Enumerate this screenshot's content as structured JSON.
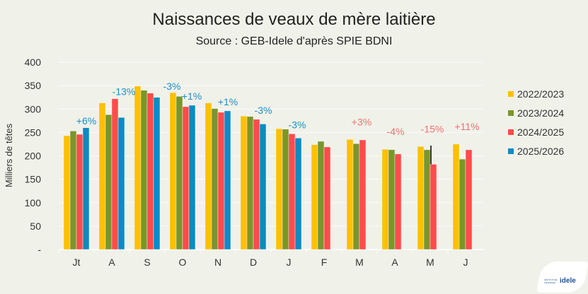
{
  "chart_data": {
    "type": "bar",
    "title": "Naissances de veaux de mère laitière",
    "subtitle": "Source : GEB-Idele d'après SPIE BDNI",
    "xlabel": "",
    "ylabel": "Milliers de têtes",
    "ylim": [
      0,
      400
    ],
    "yticks": [
      "-",
      "50",
      "100",
      "150",
      "200",
      "250",
      "300",
      "350",
      "400"
    ],
    "grid": true,
    "legend_position": "right",
    "categories": [
      "Jt",
      "A",
      "S",
      "O",
      "N",
      "D",
      "J",
      "F",
      "M",
      "A",
      "M",
      "J"
    ],
    "series": [
      {
        "name": "2022/2023",
        "color": "#FFC000",
        "values": [
          243,
          313,
          349,
          335,
          313,
          285,
          258,
          224,
          235,
          214,
          220,
          225
        ]
      },
      {
        "name": "2023/2024",
        "color": "#7A962A",
        "values": [
          253,
          288,
          340,
          327,
          301,
          284,
          257,
          231,
          226,
          213,
          213,
          193
        ]
      },
      {
        "name": "2024/2025",
        "color": "#FF4B4B",
        "values": [
          246,
          322,
          334,
          305,
          293,
          278,
          247,
          219,
          234,
          204,
          182,
          213
        ]
      },
      {
        "name": "2025/2026",
        "color": "#0A8CC4",
        "values": [
          260,
          282,
          325,
          308,
          296,
          268,
          238,
          null,
          null,
          null,
          null,
          null
        ]
      }
    ],
    "annotations": [
      "+6%",
      "-13%",
      "-3%",
      "+1%",
      "+1%",
      "-3%",
      "-3%",
      "",
      "+3%",
      "-4%",
      "-15%",
      "+11%"
    ],
    "annotation_colors": {
      "current": "#1A8FC9",
      "previous": "#F07070"
    },
    "marker_line": {
      "category_index": 10,
      "from": 222,
      "to": 182,
      "color": "#000000"
    }
  },
  "logo": {
    "text": "idele",
    "subtext": "INSTITUT DE L'ÉLEVAGE"
  }
}
